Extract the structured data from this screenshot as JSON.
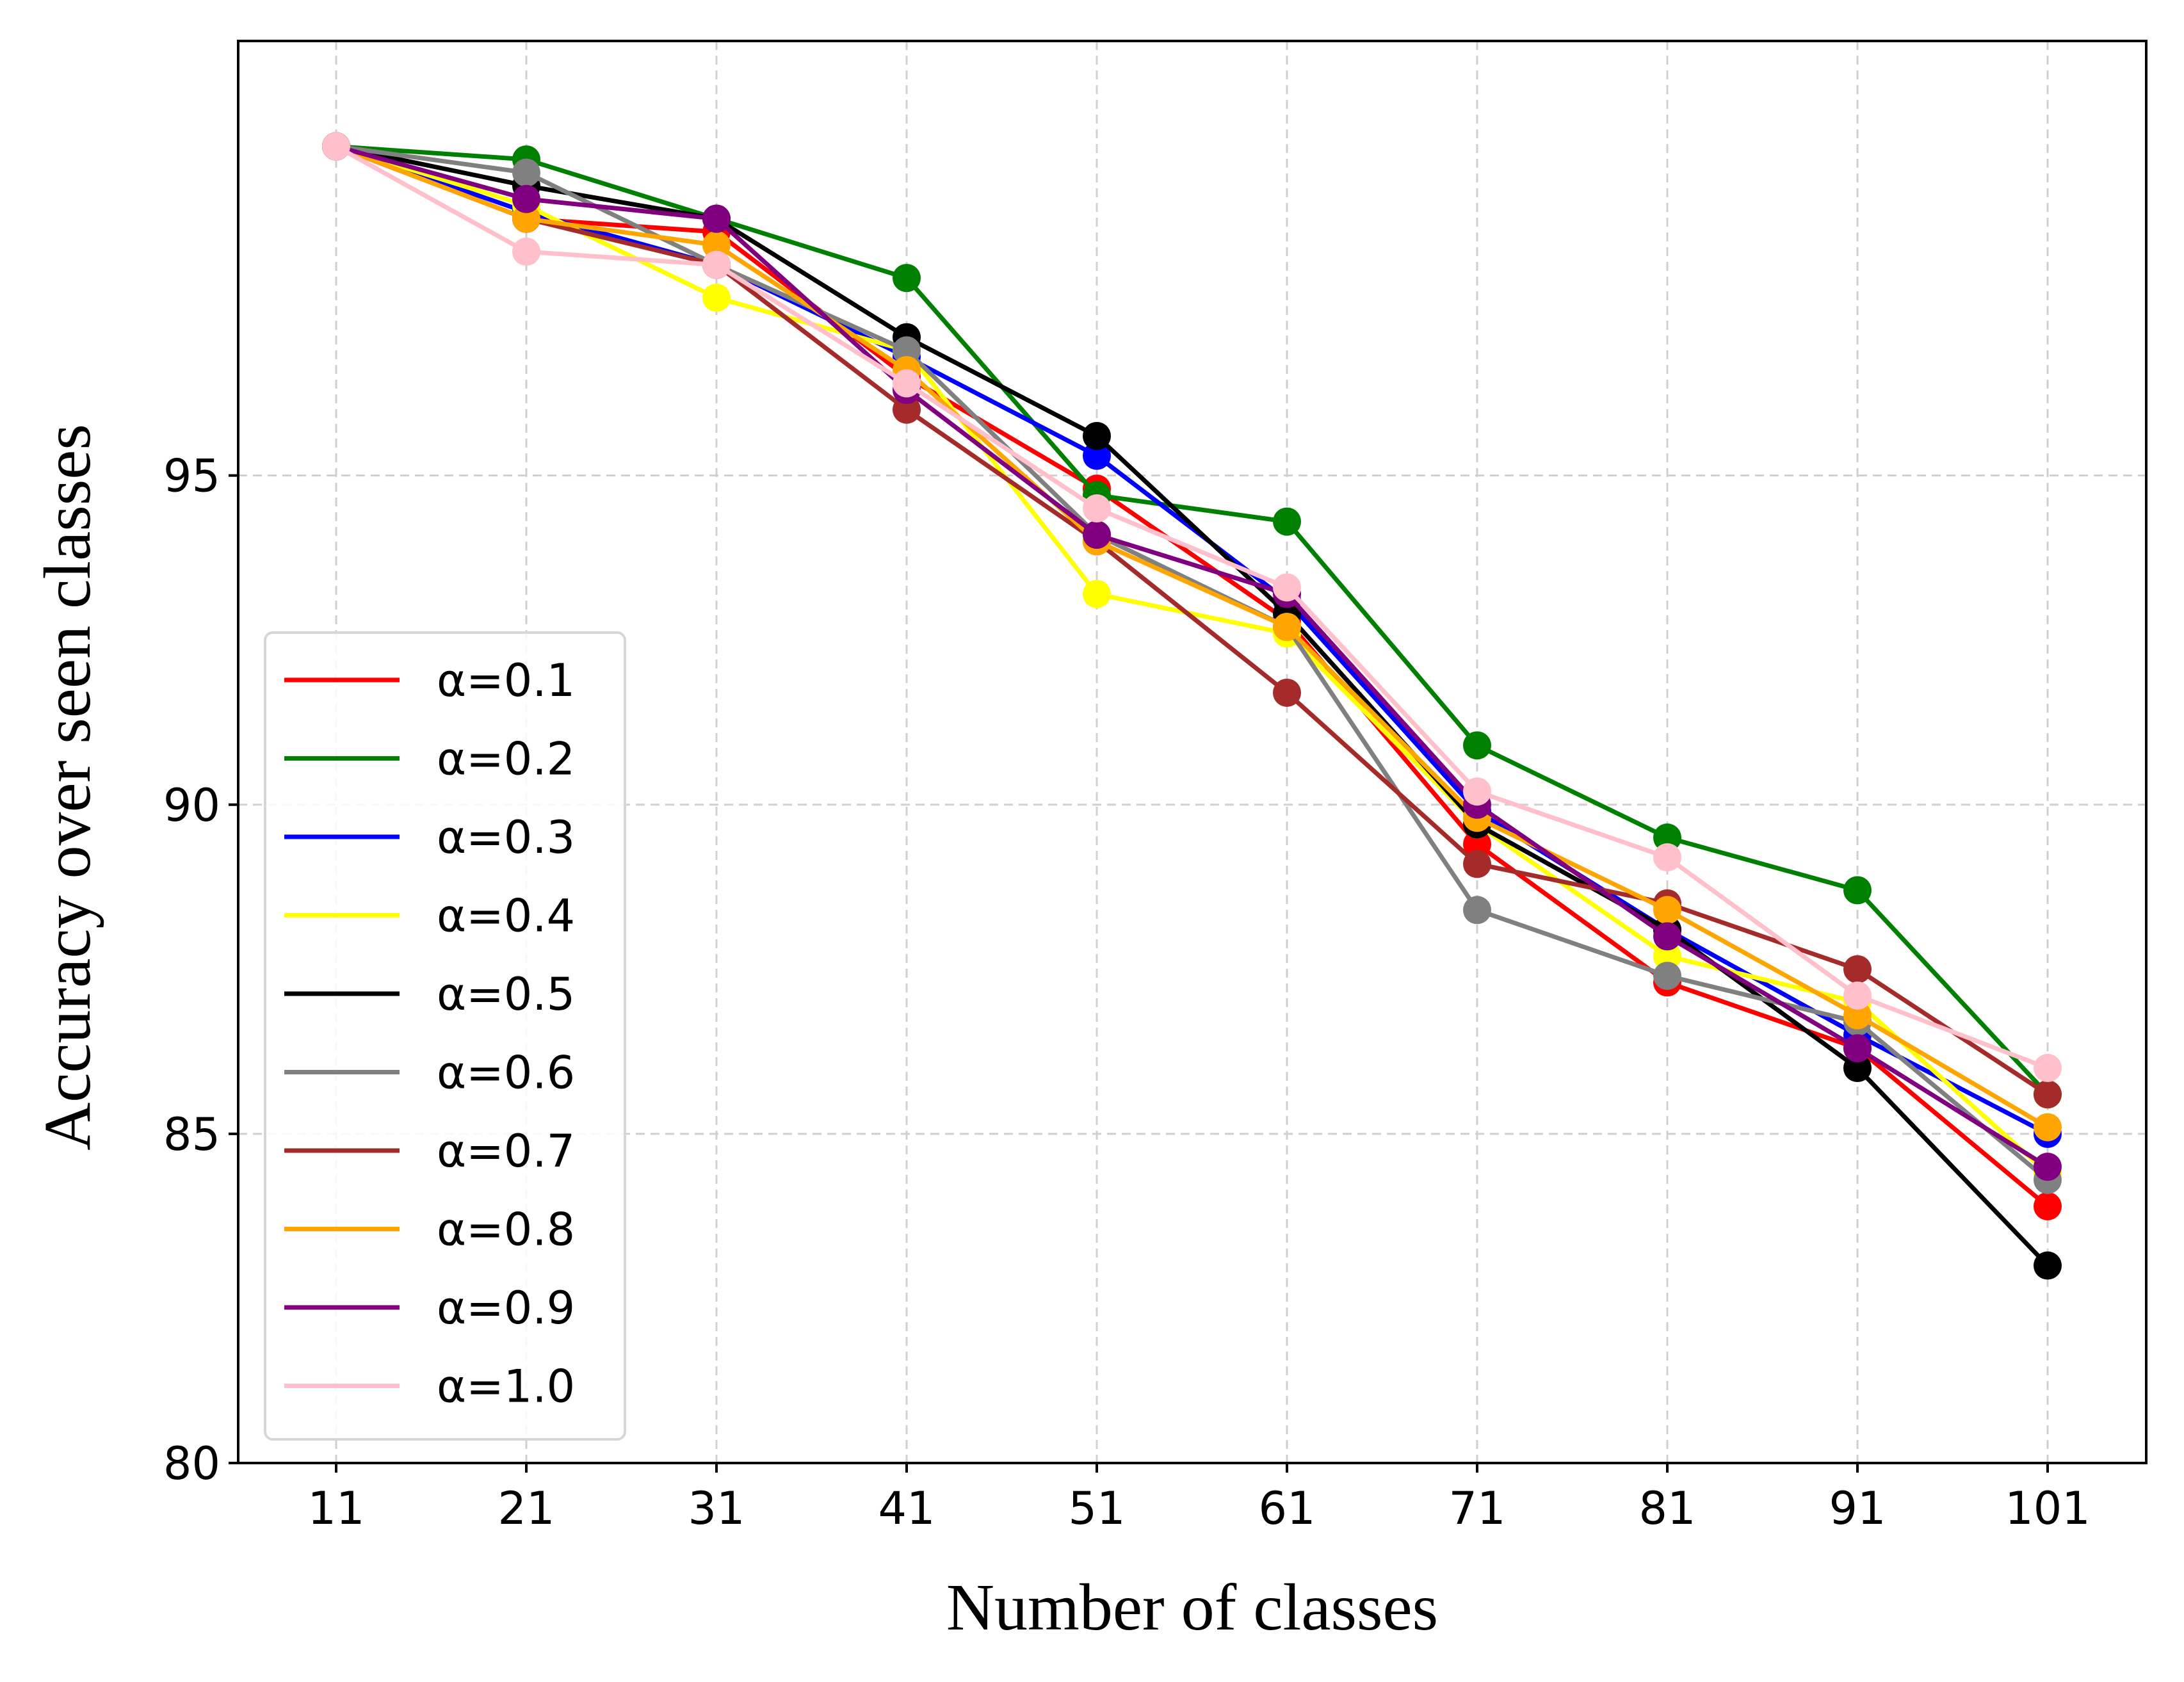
{
  "chart_data": {
    "type": "line",
    "title": "",
    "xlabel": "Number of classes",
    "ylabel": "Accuracy over seen classes",
    "categories": [
      "11",
      "21",
      "31",
      "41",
      "51",
      "61",
      "71",
      "81",
      "91",
      "101"
    ],
    "yticks": [
      "80",
      "85",
      "90",
      "95"
    ],
    "ylim": [
      80,
      101.6
    ],
    "grid": true,
    "legend_position": "lower-left",
    "series": [
      {
        "name": "α=0.1",
        "color": "#ff0000",
        "values": [
          100.0,
          98.9,
          98.7,
          96.5,
          94.8,
          92.8,
          89.4,
          87.3,
          86.3,
          83.9
        ]
      },
      {
        "name": "α=0.2",
        "color": "#008000",
        "values": [
          100.0,
          99.8,
          98.9,
          98.0,
          94.7,
          94.3,
          90.9,
          89.5,
          88.7,
          85.6
        ]
      },
      {
        "name": "α=0.3",
        "color": "#0000ff",
        "values": [
          100.0,
          99.0,
          98.2,
          96.8,
          95.3,
          93.1,
          89.9,
          88.1,
          86.5,
          85.0
        ]
      },
      {
        "name": "α=0.4",
        "color": "#ffff00",
        "values": [
          100.0,
          99.1,
          97.7,
          96.9,
          93.2,
          92.6,
          89.7,
          87.7,
          87.0,
          84.4
        ]
      },
      {
        "name": "α=0.5",
        "color": "#000000",
        "values": [
          100.0,
          99.4,
          98.9,
          97.1,
          95.6,
          92.9,
          89.7,
          88.1,
          86.0,
          83.0
        ]
      },
      {
        "name": "α=0.6",
        "color": "#808080",
        "values": [
          100.0,
          99.6,
          98.2,
          96.9,
          94.1,
          92.7,
          88.4,
          87.4,
          86.7,
          84.3
        ]
      },
      {
        "name": "α=0.7",
        "color": "#a52a2a",
        "values": [
          100.0,
          98.9,
          98.2,
          96.0,
          94.0,
          91.7,
          89.1,
          88.5,
          87.5,
          85.6
        ]
      },
      {
        "name": "α=0.8",
        "color": "#ffa500",
        "values": [
          100.0,
          98.9,
          98.5,
          96.6,
          94.0,
          92.7,
          89.8,
          88.4,
          86.8,
          85.1
        ]
      },
      {
        "name": "α=0.9",
        "color": "#800080",
        "values": [
          100.0,
          99.2,
          98.9,
          96.3,
          94.1,
          93.2,
          90.0,
          88.0,
          86.3,
          84.5
        ]
      },
      {
        "name": "α=1.0",
        "color": "#ffc0cb",
        "values": [
          100.0,
          98.4,
          98.2,
          96.4,
          94.5,
          93.3,
          90.2,
          89.2,
          87.1,
          86.0
        ]
      }
    ]
  }
}
